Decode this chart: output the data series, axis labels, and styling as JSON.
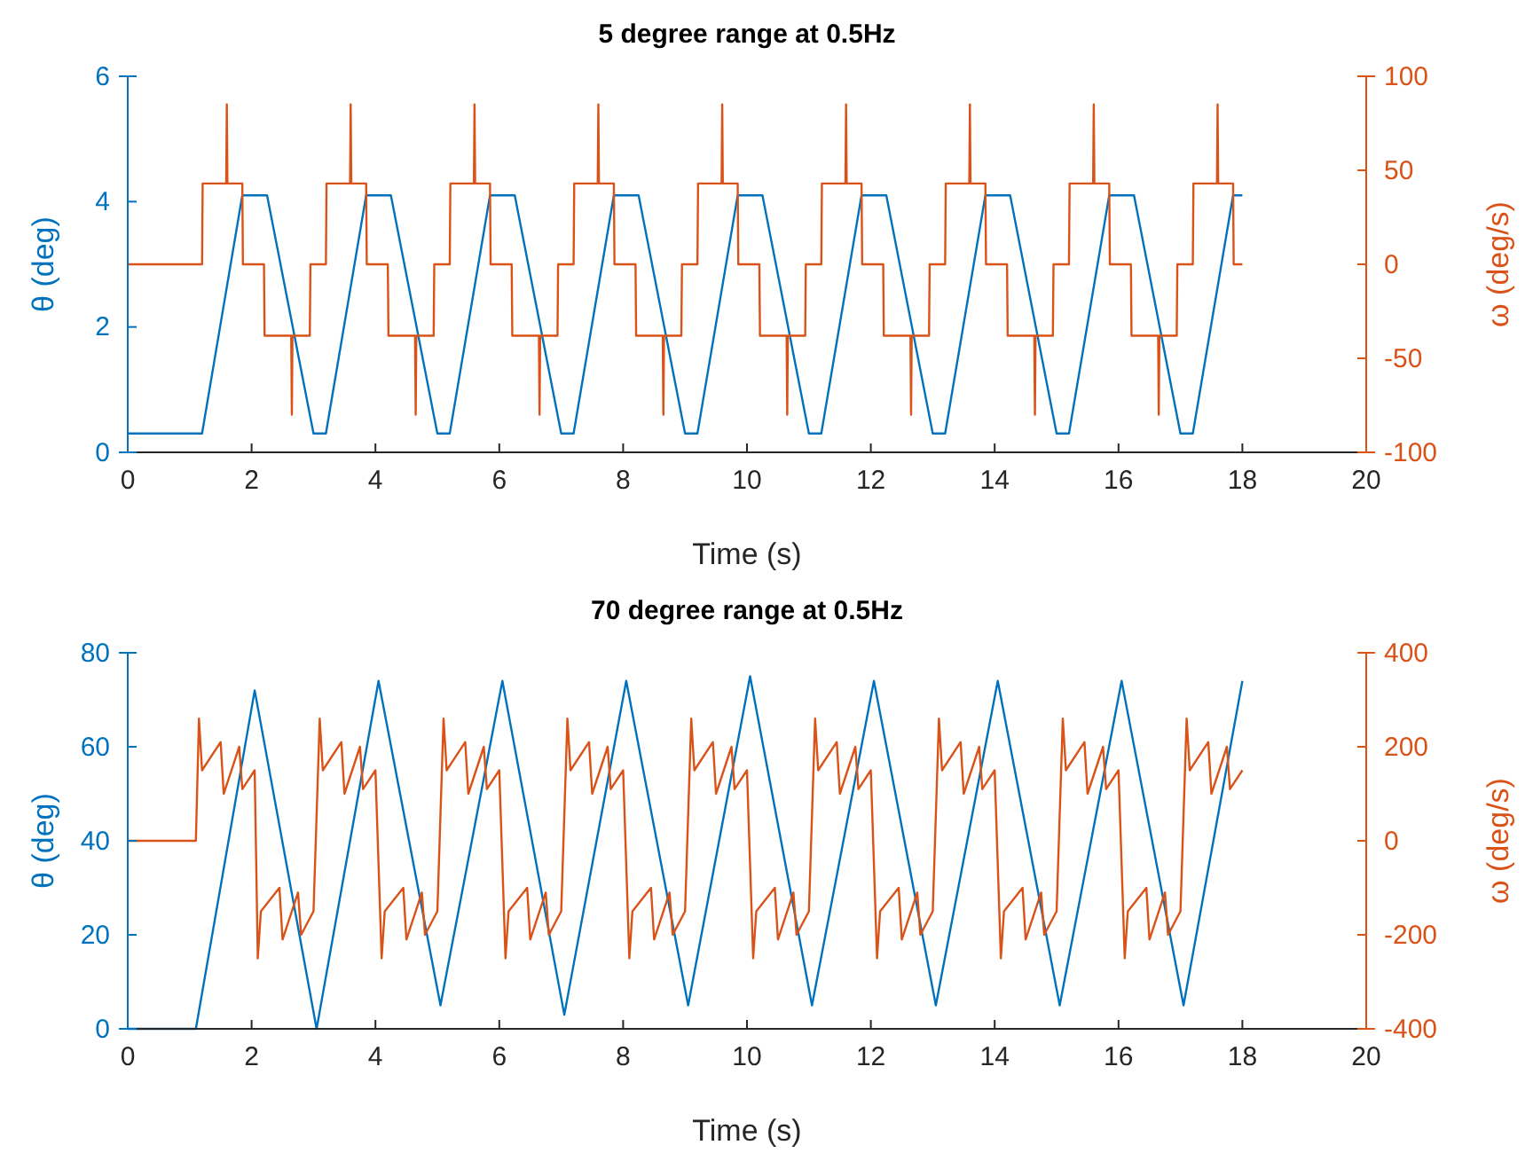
{
  "chart_data": [
    {
      "type": "line",
      "title": "5 degree range at 0.5Hz",
      "xlabel": "Time (s)",
      "ylabel": "θ (deg)",
      "y2label": "ω (deg/s)",
      "xlim": [
        0,
        20
      ],
      "xticks": [
        0,
        2,
        4,
        6,
        8,
        10,
        12,
        14,
        16,
        18,
        20
      ],
      "ylim": [
        0,
        6
      ],
      "yticks": [
        0,
        2,
        4,
        6
      ],
      "y2lim": [
        -100,
        100
      ],
      "y2ticks": [
        -100,
        -50,
        0,
        50,
        100
      ],
      "series": [
        {
          "color": "#0072bd",
          "x": [
            0,
            1.2,
            1.85,
            2.25,
            3.0,
            3.2,
            3.85,
            4.25,
            5.0,
            5.2,
            5.85,
            6.25,
            7.0,
            7.2,
            7.85,
            8.25,
            9.0,
            9.2,
            9.85,
            10.25,
            11.0,
            11.2,
            11.85,
            12.25,
            13.0,
            13.2,
            13.85,
            14.25,
            15.0,
            15.2,
            15.85,
            16.25,
            17.0,
            17.2,
            17.85,
            18.0
          ],
          "values": [
            0.3,
            0.3,
            4.1,
            4.1,
            0.3,
            0.3,
            4.1,
            4.1,
            0.3,
            0.3,
            4.1,
            4.1,
            0.3,
            0.3,
            4.1,
            4.1,
            0.3,
            0.3,
            4.1,
            4.1,
            0.3,
            0.3,
            4.1,
            4.1,
            0.3,
            0.3,
            4.1,
            4.1,
            0.3,
            0.3,
            4.1,
            4.1,
            0.3,
            0.3,
            4.1,
            4.1
          ]
        },
        {
          "color": "#d95319",
          "axis": "y2",
          "x": [
            0,
            1.2,
            1.21,
            1.59,
            1.6,
            1.61,
            1.85,
            1.86,
            2.2,
            2.21,
            2.64,
            2.65,
            2.66,
            2.94,
            2.95,
            3.2,
            3.21,
            3.59,
            3.6,
            3.61,
            3.85,
            3.86,
            4.2,
            4.21,
            4.64,
            4.65,
            4.66,
            4.94,
            4.95,
            5.2,
            5.21,
            5.59,
            5.6,
            5.61,
            5.85,
            5.86,
            6.2,
            6.21,
            6.64,
            6.65,
            6.66,
            6.94,
            6.95,
            7.2,
            7.21,
            7.59,
            7.6,
            7.61,
            7.85,
            7.86,
            8.2,
            8.21,
            8.64,
            8.65,
            8.66,
            8.94,
            8.95,
            9.2,
            9.21,
            9.59,
            9.6,
            9.61,
            9.85,
            9.86,
            10.2,
            10.21,
            10.64,
            10.65,
            10.66,
            10.94,
            10.95,
            11.2,
            11.21,
            11.59,
            11.6,
            11.61,
            11.85,
            11.86,
            12.2,
            12.21,
            12.64,
            12.65,
            12.66,
            12.94,
            12.95,
            13.2,
            13.21,
            13.59,
            13.6,
            13.61,
            13.85,
            13.86,
            14.2,
            14.21,
            14.64,
            14.65,
            14.66,
            14.94,
            14.95,
            15.2,
            15.21,
            15.59,
            15.6,
            15.61,
            15.85,
            15.86,
            16.2,
            16.21,
            16.64,
            16.65,
            16.66,
            16.94,
            16.95,
            17.2,
            17.21,
            17.59,
            17.6,
            17.61,
            17.85,
            17.86,
            18.0
          ],
          "values": [
            0,
            0,
            43,
            43,
            85,
            43,
            43,
            0,
            0,
            -38,
            -38,
            -80,
            -38,
            -38,
            0,
            0,
            43,
            43,
            85,
            43,
            43,
            0,
            0,
            -38,
            -38,
            -80,
            -38,
            -38,
            0,
            0,
            43,
            43,
            85,
            43,
            43,
            0,
            0,
            -38,
            -38,
            -80,
            -38,
            -38,
            0,
            0,
            43,
            43,
            85,
            43,
            43,
            0,
            0,
            -38,
            -38,
            -80,
            -38,
            -38,
            0,
            0,
            43,
            43,
            85,
            43,
            43,
            0,
            0,
            -38,
            -38,
            -80,
            -38,
            -38,
            0,
            0,
            43,
            43,
            85,
            43,
            43,
            0,
            0,
            -38,
            -38,
            -80,
            -38,
            -38,
            0,
            0,
            43,
            43,
            85,
            43,
            43,
            0,
            0,
            -38,
            -38,
            -80,
            -38,
            -38,
            0,
            0,
            43,
            43,
            85,
            43,
            43,
            0,
            0,
            -38,
            -38,
            -80,
            -38,
            -38,
            0,
            0,
            43,
            43,
            85,
            43,
            43,
            0,
            0
          ]
        }
      ]
    },
    {
      "type": "line",
      "title": "70 degree range at 0.5Hz",
      "xlabel": "Time (s)",
      "ylabel": "θ (deg)",
      "y2label": "ω (deg/s)",
      "xlim": [
        0,
        20
      ],
      "xticks": [
        0,
        2,
        4,
        6,
        8,
        10,
        12,
        14,
        16,
        18,
        20
      ],
      "ylim": [
        0,
        80
      ],
      "yticks": [
        0,
        20,
        40,
        60,
        80
      ],
      "y2lim": [
        -400,
        400
      ],
      "y2ticks": [
        -400,
        -200,
        0,
        200,
        400
      ],
      "series": [
        {
          "color": "#0072bd",
          "x": [
            0,
            1.1,
            2.05,
            3.05,
            4.05,
            5.05,
            6.05,
            7.05,
            8.05,
            9.05,
            10.05,
            11.05,
            12.05,
            13.05,
            14.05,
            15.05,
            16.05,
            17.05,
            18.0
          ],
          "values": [
            0,
            0,
            72,
            0,
            74,
            5,
            74,
            3,
            74,
            5,
            75,
            5,
            74,
            5,
            74,
            5,
            74,
            5,
            74
          ]
        },
        {
          "color": "#d95319",
          "axis": "y2",
          "x": [
            0,
            1.1,
            1.15,
            1.2,
            1.5,
            1.55,
            1.8,
            1.85,
            2.05,
            2.1,
            2.15,
            2.45,
            2.5,
            2.75,
            2.8,
            3.0,
            3.1,
            3.15,
            3.45,
            3.5,
            3.75,
            3.8,
            4.0,
            4.1,
            4.15,
            4.45,
            4.5,
            4.75,
            4.8,
            5.0,
            5.1,
            5.15,
            5.45,
            5.5,
            5.75,
            5.8,
            6.0,
            6.1,
            6.15,
            6.45,
            6.5,
            6.75,
            6.8,
            7.0,
            7.1,
            7.15,
            7.45,
            7.5,
            7.75,
            7.8,
            8.0,
            8.1,
            8.15,
            8.45,
            8.5,
            8.75,
            8.8,
            9.0,
            9.1,
            9.15,
            9.45,
            9.5,
            9.75,
            9.8,
            10.0,
            10.1,
            10.15,
            10.45,
            10.5,
            10.75,
            10.8,
            11.0,
            11.1,
            11.15,
            11.45,
            11.5,
            11.75,
            11.8,
            12.0,
            12.1,
            12.15,
            12.45,
            12.5,
            12.75,
            12.8,
            13.0,
            13.1,
            13.15,
            13.45,
            13.5,
            13.75,
            13.8,
            14.0,
            14.1,
            14.15,
            14.45,
            14.5,
            14.75,
            14.8,
            15.0,
            15.1,
            15.15,
            15.45,
            15.5,
            15.75,
            15.8,
            16.0,
            16.1,
            16.15,
            16.45,
            16.5,
            16.75,
            16.8,
            17.0,
            17.1,
            17.15,
            17.45,
            17.5,
            17.75,
            17.8,
            18.0
          ],
          "values": [
            0,
            0,
            260,
            150,
            210,
            100,
            200,
            110,
            150,
            -250,
            -150,
            -100,
            -210,
            -110,
            -200,
            -150,
            260,
            150,
            210,
            100,
            200,
            110,
            150,
            -250,
            -150,
            -100,
            -210,
            -110,
            -200,
            -150,
            260,
            150,
            210,
            100,
            200,
            110,
            150,
            -250,
            -150,
            -100,
            -210,
            -110,
            -200,
            -150,
            260,
            150,
            210,
            100,
            200,
            110,
            150,
            -250,
            -150,
            -100,
            -210,
            -110,
            -200,
            -150,
            260,
            150,
            210,
            100,
            200,
            110,
            150,
            -250,
            -150,
            -100,
            -210,
            -110,
            -200,
            -150,
            260,
            150,
            210,
            100,
            200,
            110,
            150,
            -250,
            -150,
            -100,
            -210,
            -110,
            -200,
            -150,
            260,
            150,
            210,
            100,
            200,
            110,
            150,
            -250,
            -150,
            -100,
            -210,
            -110,
            -200,
            -150,
            260,
            150,
            210,
            100,
            200,
            110,
            150,
            -250,
            -150,
            -100,
            -210,
            -110,
            -200,
            -150,
            260,
            150,
            210,
            100,
            200,
            110,
            150
          ]
        }
      ]
    }
  ]
}
